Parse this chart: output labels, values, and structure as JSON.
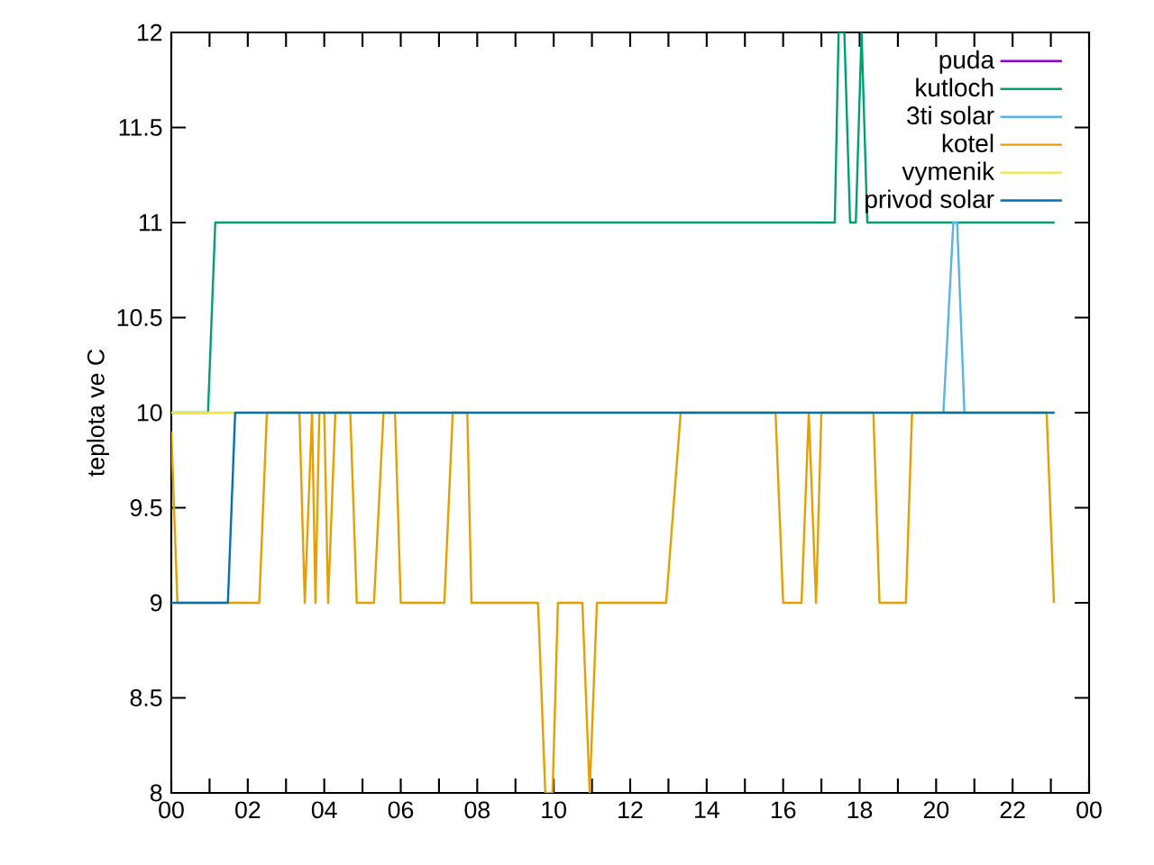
{
  "chart_data": {
    "type": "line",
    "ylabel": "teplota ve C",
    "xlim": [
      0,
      24
    ],
    "ylim": [
      8,
      12
    ],
    "xticks": [
      {
        "value": 0,
        "label": "00"
      },
      {
        "value": 1,
        "label": null
      },
      {
        "value": 2,
        "label": "02"
      },
      {
        "value": 3,
        "label": null
      },
      {
        "value": 4,
        "label": "04"
      },
      {
        "value": 5,
        "label": null
      },
      {
        "value": 6,
        "label": "06"
      },
      {
        "value": 7,
        "label": null
      },
      {
        "value": 8,
        "label": "08"
      },
      {
        "value": 9,
        "label": null
      },
      {
        "value": 10,
        "label": "10"
      },
      {
        "value": 11,
        "label": null
      },
      {
        "value": 12,
        "label": "12"
      },
      {
        "value": 13,
        "label": null
      },
      {
        "value": 14,
        "label": "14"
      },
      {
        "value": 15,
        "label": null
      },
      {
        "value": 16,
        "label": "16"
      },
      {
        "value": 17,
        "label": null
      },
      {
        "value": 18,
        "label": "18"
      },
      {
        "value": 19,
        "label": null
      },
      {
        "value": 20,
        "label": "20"
      },
      {
        "value": 21,
        "label": null
      },
      {
        "value": 22,
        "label": "22"
      },
      {
        "value": 23,
        "label": null
      },
      {
        "value": 24,
        "label": "00"
      }
    ],
    "yticks": [
      8,
      8.5,
      9,
      9.5,
      10,
      10.5,
      11,
      11.5,
      12
    ],
    "grid": false,
    "legend": "top right",
    "marker": "none",
    "line_style": "solid",
    "series": [
      {
        "name": "puda",
        "color": "#9400d3"
      },
      {
        "name": "kutloch",
        "color": "#009e73",
        "x": [
          0,
          0.96,
          1.15,
          17.35,
          17.45,
          17.6,
          17.75,
          17.9,
          18.05,
          18.2,
          23.1
        ],
        "values": [
          10,
          10,
          11,
          11,
          12,
          12,
          11,
          11,
          12,
          11,
          11
        ]
      },
      {
        "name": "3ti solar",
        "color": "#56b4e9",
        "x": [
          20.19,
          20.45,
          20.55,
          20.74
        ],
        "values": [
          10,
          11,
          11,
          10
        ]
      },
      {
        "name": "kotel",
        "color": "#e69f00",
        "x": [
          0,
          0.16,
          2.3,
          2.5,
          3.35,
          3.49,
          3.68,
          3.77,
          3.87,
          4.0,
          4.1,
          4.29,
          4.68,
          4.85,
          5.3,
          5.55,
          5.85,
          6.0,
          7.14,
          7.36,
          7.74,
          7.85,
          9.59,
          9.78,
          9.97,
          10.11,
          10.75,
          10.94,
          11.13,
          12.94,
          13.32,
          15.8,
          16.0,
          16.48,
          16.67,
          16.86,
          17.0,
          18.36,
          18.52,
          19.21,
          19.37,
          22.89,
          23.08
        ],
        "values": [
          9.9,
          9,
          9,
          10,
          10,
          9,
          10,
          9,
          10,
          10,
          9,
          10,
          10,
          9,
          9,
          10,
          10,
          9,
          9,
          10,
          10,
          9,
          9,
          8,
          8,
          9,
          9,
          8,
          9,
          9,
          10,
          10,
          9,
          9,
          10,
          9,
          10,
          10,
          9,
          9,
          10,
          10,
          9
        ]
      },
      {
        "name": "vymenik",
        "color": "#f0e442",
        "x": [
          0,
          1.67
        ],
        "values": [
          10,
          10
        ]
      },
      {
        "name": "privod solar",
        "color": "#0072b2",
        "x": [
          0,
          1.48,
          1.67,
          23.1
        ],
        "values": [
          9,
          9,
          10,
          10
        ]
      }
    ]
  }
}
